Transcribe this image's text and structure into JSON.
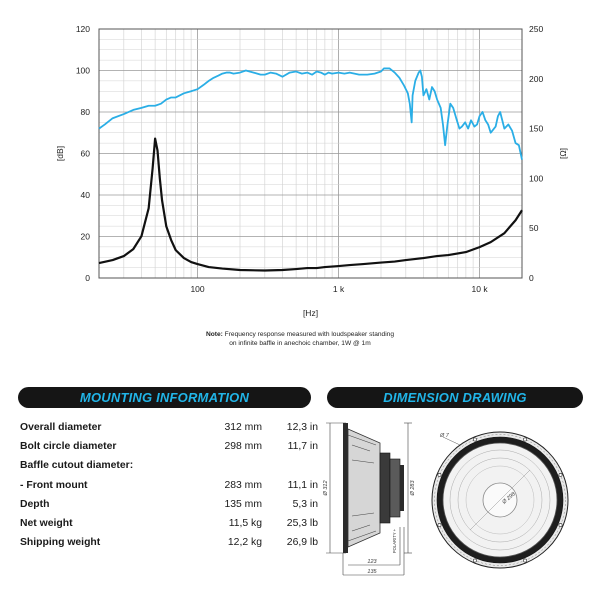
{
  "chart_data": {
    "type": "line",
    "xscale": "log",
    "xlim": [
      20,
      20000
    ],
    "ylim_left": [
      0,
      120
    ],
    "ylim_right": [
      0,
      250
    ],
    "xlabel": "[Hz]",
    "ylabel_left": "[dB]",
    "ylabel_right": "[Ω]",
    "x_tick_labels": [
      {
        "value": 100,
        "label": "100"
      },
      {
        "value": 1000,
        "label": "1 k"
      },
      {
        "value": 10000,
        "label": "10 k"
      }
    ],
    "y_left_ticks": [
      0,
      20,
      40,
      60,
      80,
      100,
      120
    ],
    "y_right_ticks": [
      0,
      50,
      100,
      150,
      200,
      250
    ],
    "grid": true,
    "series": [
      {
        "name": "Frequency response",
        "axis": "left",
        "color": "#2aaee6",
        "unit": "dB",
        "points": [
          [
            20,
            72
          ],
          [
            22,
            74
          ],
          [
            25,
            77
          ],
          [
            30,
            79
          ],
          [
            35,
            81
          ],
          [
            40,
            82
          ],
          [
            45,
            83
          ],
          [
            50,
            83
          ],
          [
            55,
            84
          ],
          [
            60,
            86
          ],
          [
            65,
            87
          ],
          [
            70,
            87
          ],
          [
            80,
            89
          ],
          [
            90,
            90
          ],
          [
            100,
            91
          ],
          [
            110,
            93
          ],
          [
            120,
            95
          ],
          [
            130,
            96.5
          ],
          [
            140,
            97.5
          ],
          [
            150,
            98.5
          ],
          [
            160,
            99
          ],
          [
            170,
            99
          ],
          [
            180,
            98.5
          ],
          [
            200,
            99
          ],
          [
            220,
            100
          ],
          [
            250,
            99
          ],
          [
            280,
            98
          ],
          [
            300,
            98
          ],
          [
            330,
            99
          ],
          [
            360,
            98.5
          ],
          [
            400,
            97
          ],
          [
            450,
            99
          ],
          [
            500,
            99.5
          ],
          [
            550,
            98.5
          ],
          [
            600,
            99
          ],
          [
            650,
            98
          ],
          [
            700,
            99.5
          ],
          [
            750,
            99
          ],
          [
            800,
            98
          ],
          [
            850,
            99
          ],
          [
            900,
            98.5
          ],
          [
            1000,
            99
          ],
          [
            1100,
            98.5
          ],
          [
            1200,
            99
          ],
          [
            1400,
            98
          ],
          [
            1600,
            98
          ],
          [
            1800,
            98.5
          ],
          [
            2000,
            99.5
          ],
          [
            2100,
            101
          ],
          [
            2300,
            101
          ],
          [
            2500,
            99
          ],
          [
            2700,
            96.5
          ],
          [
            2900,
            93
          ],
          [
            3100,
            89
          ],
          [
            3200,
            84
          ],
          [
            3300,
            75
          ],
          [
            3350,
            88
          ],
          [
            3500,
            95
          ],
          [
            3700,
            99
          ],
          [
            3800,
            100
          ],
          [
            3900,
            97
          ],
          [
            4000,
            88
          ],
          [
            4200,
            91
          ],
          [
            4400,
            86
          ],
          [
            4600,
            92
          ],
          [
            4800,
            90
          ],
          [
            5000,
            86
          ],
          [
            5300,
            82
          ],
          [
            5500,
            74
          ],
          [
            5700,
            64
          ],
          [
            5900,
            73
          ],
          [
            6200,
            84
          ],
          [
            6500,
            82
          ],
          [
            6900,
            76
          ],
          [
            7200,
            72
          ],
          [
            7500,
            73
          ],
          [
            7900,
            75
          ],
          [
            8300,
            72
          ],
          [
            8700,
            76
          ],
          [
            9200,
            73
          ],
          [
            9600,
            74
          ],
          [
            10000,
            78
          ],
          [
            10500,
            80
          ],
          [
            11000,
            76
          ],
          [
            11500,
            74
          ],
          [
            12000,
            70
          ],
          [
            13000,
            73
          ],
          [
            13500,
            78
          ],
          [
            14000,
            80
          ],
          [
            15000,
            72
          ],
          [
            16000,
            74
          ],
          [
            17000,
            71
          ],
          [
            18000,
            65
          ],
          [
            19000,
            64
          ],
          [
            20000,
            57
          ]
        ]
      },
      {
        "name": "Impedance",
        "axis": "right",
        "color": "#111111",
        "unit": "Ω",
        "points": [
          [
            20,
            15
          ],
          [
            25,
            18
          ],
          [
            30,
            22
          ],
          [
            35,
            29
          ],
          [
            40,
            42
          ],
          [
            45,
            70
          ],
          [
            48,
            110
          ],
          [
            50,
            140
          ],
          [
            52,
            128
          ],
          [
            54,
            100
          ],
          [
            56,
            78
          ],
          [
            60,
            52
          ],
          [
            65,
            38
          ],
          [
            70,
            28
          ],
          [
            80,
            20
          ],
          [
            90,
            16
          ],
          [
            100,
            14
          ],
          [
            120,
            11
          ],
          [
            150,
            9.5
          ],
          [
            200,
            8
          ],
          [
            300,
            7.5
          ],
          [
            400,
            8
          ],
          [
            500,
            9
          ],
          [
            600,
            10
          ],
          [
            700,
            10
          ],
          [
            800,
            11
          ],
          [
            1000,
            12
          ],
          [
            1200,
            13
          ],
          [
            1500,
            14
          ],
          [
            2000,
            15.5
          ],
          [
            2500,
            16.5
          ],
          [
            3000,
            18
          ],
          [
            4000,
            20
          ],
          [
            5000,
            22
          ],
          [
            6000,
            23
          ],
          [
            8000,
            26
          ],
          [
            10000,
            31
          ],
          [
            12000,
            36
          ],
          [
            15000,
            45
          ],
          [
            18000,
            58
          ],
          [
            20000,
            68
          ]
        ]
      }
    ]
  },
  "note": {
    "label": "Note:",
    "line1": " Frequency response measured with loudspeaker standing",
    "line2": "on infinite baffle in anechoic chamber, 1W @ 1m"
  },
  "mounting": {
    "title": "MOUNTING INFORMATION",
    "rows": [
      {
        "label": "Overall diameter",
        "mm": "312 mm",
        "inch": "12,3 in"
      },
      {
        "label": "Bolt circle diameter",
        "mm": "298 mm",
        "inch": "11,7 in"
      },
      {
        "label": "Baffle cutout diameter:",
        "mm": "",
        "inch": ""
      },
      {
        "label": " - Front mount",
        "mm": "283 mm",
        "inch": "11,1 in"
      },
      {
        "label": "Depth",
        "mm": "135 mm",
        "inch": "5,3 in"
      },
      {
        "label": "Net weight",
        "mm": "11,5 kg",
        "inch": "25,3 lb"
      },
      {
        "label": "Shipping weight",
        "mm": "12,2 kg",
        "inch": "26,9 lb"
      }
    ]
  },
  "dimension": {
    "title": "DIMENSION DRAWING",
    "labels": {
      "overall_diameter": "Ø 312",
      "cutout_diameter": "Ø 283",
      "bolt_hole": "Ø 7",
      "bolt_circle": "Ø 298",
      "polarity": "POLARITY +",
      "depth_inner": "123",
      "depth_total": "135"
    }
  }
}
